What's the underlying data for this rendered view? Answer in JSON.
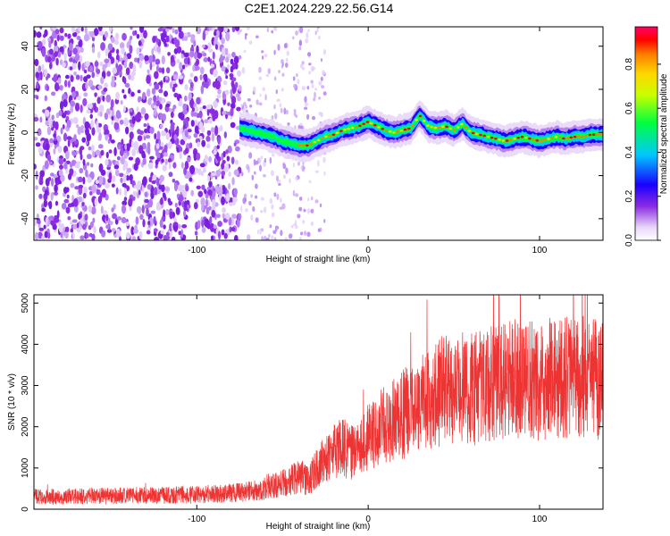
{
  "page_title": "C2E1.2024.229.22.56.G14",
  "chart_data": [
    {
      "type": "heatmap",
      "xlabel": "Height of straight line (km)",
      "ylabel": "Frequency (Hz)",
      "xlim": [
        -195,
        137
      ],
      "ylim": [
        -50,
        49
      ],
      "x_ticks": [
        -100,
        0,
        100
      ],
      "y_ticks": [
        -40,
        -20,
        0,
        20,
        40
      ],
      "grid": false,
      "noise_region_x": [
        -195,
        -75
      ],
      "sparse_noise_region_x": [
        -75,
        -25
      ],
      "signal_start_x": -75,
      "signal_frequency_trace": {
        "x": [
          -75,
          -70,
          -65,
          -60,
          -55,
          -50,
          -45,
          -40,
          -35,
          -30,
          -25,
          -20,
          -15,
          -10,
          -5,
          0,
          5,
          10,
          15,
          20,
          25,
          30,
          35,
          40,
          45,
          50,
          55,
          60,
          65,
          70,
          75,
          80,
          85,
          90,
          95,
          100,
          105,
          110,
          115,
          120,
          125,
          130,
          137
        ],
        "y": [
          2,
          1,
          0,
          -1,
          -2,
          -4,
          -5,
          -6,
          -6,
          -4,
          -2,
          -1,
          1,
          2,
          3,
          5,
          3,
          1,
          0,
          1,
          2,
          8,
          3,
          2,
          3,
          1,
          4,
          0,
          -1,
          -2,
          -3,
          -4,
          -3,
          -2,
          -3,
          -4,
          -3,
          -2,
          -3,
          -2,
          -2,
          -1,
          -1
        ]
      },
      "colorbar": {
        "label": "Normalized spectral amplitude",
        "range": [
          0.0,
          0.97
        ],
        "ticks": [
          0.0,
          0.2,
          0.4,
          0.6,
          0.8
        ],
        "tick_labels": [
          "0.0",
          "0.2",
          "0.4",
          "0.6",
          "0.8"
        ],
        "colormap": [
          "#ff00ff",
          "#ffffff",
          "#e8d8f8",
          "#8a2be2",
          "#1a00ff",
          "#00c8ff",
          "#00ff40",
          "#c8ff00",
          "#ffd700",
          "#ff7f00",
          "#ff0000",
          "#ff0066"
        ]
      }
    },
    {
      "type": "line",
      "xlabel": "Height of straight line (km)",
      "ylabel": "SNR (10 * v/v)",
      "xlim": [
        -195,
        137
      ],
      "ylim": [
        0,
        5200
      ],
      "x_ticks": [
        -100,
        0,
        100
      ],
      "y_ticks": [
        0,
        1000,
        2000,
        3000,
        4000,
        5000
      ],
      "grid": false,
      "color": "#ee3333",
      "trend": {
        "x": [
          -195,
          -150,
          -100,
          -75,
          -60,
          -50,
          -40,
          -35,
          -30,
          -25,
          -20,
          -15,
          -10,
          -5,
          0,
          10,
          20,
          30,
          40,
          50,
          60,
          70,
          80,
          90,
          100,
          110,
          120,
          130,
          137
        ],
        "y": [
          300,
          320,
          350,
          400,
          500,
          650,
          800,
          700,
          1000,
          1200,
          1400,
          1500,
          1400,
          1500,
          1800,
          2100,
          2300,
          2500,
          2800,
          3000,
          2900,
          3000,
          3200,
          3100,
          3100,
          3200,
          3200,
          3200,
          3100
        ]
      }
    }
  ]
}
